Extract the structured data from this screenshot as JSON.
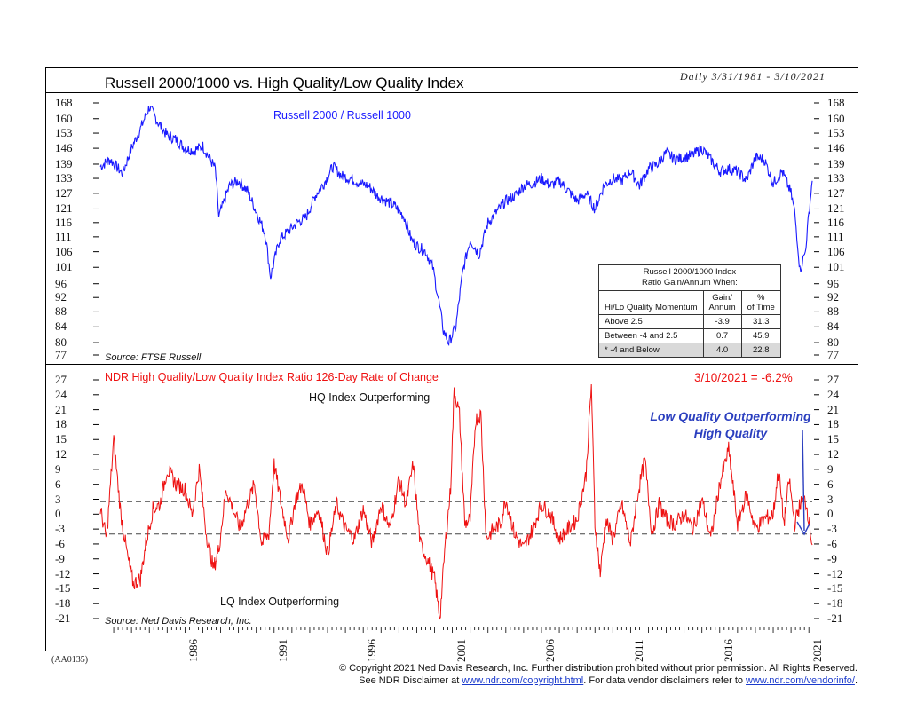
{
  "header": {
    "title": "Russell 2000/1000 vs. High Quality/Low Quality Index",
    "date_range": "Daily 3/31/1981 - 3/10/2021"
  },
  "top_panel": {
    "series_label": "Russell 2000 / Russell 1000",
    "source": "Source: FTSE Russell",
    "y_ticks": [
      "168",
      "160",
      "153",
      "146",
      "139",
      "133",
      "127",
      "121",
      "116",
      "111",
      "106",
      "101",
      "96",
      "92",
      "88",
      "84",
      "80",
      "77"
    ]
  },
  "bottom_panel": {
    "title": "NDR High Quality/Low Quality Index Ratio 126-Day Rate of Change",
    "latest": "3/10/2021 = -6.2%",
    "hq_label": "HQ Index Outperforming",
    "lq_label": "LQ Index Outperforming",
    "callout_line1": "Low Quality Outperforming",
    "callout_line2": "High Quality",
    "source": "Source: Ned Davis Research, Inc.",
    "y_ticks": [
      "27",
      "24",
      "21",
      "18",
      "15",
      "12",
      "9",
      "6",
      "3",
      "0",
      "-3",
      "-6",
      "-9",
      "-12",
      "-15",
      "-18",
      "-21"
    ]
  },
  "x_axis": {
    "years": [
      "1986",
      "1991",
      "1996",
      "2001",
      "2006",
      "2011",
      "2016",
      "2021"
    ]
  },
  "stats_table": {
    "title_line1": "Russell 2000/1000 Index",
    "title_line2": "Ratio Gain/Annum When:",
    "col1": "Hi/Lo Quality Momentum",
    "col2a": "Gain/",
    "col2b": "Annum",
    "col3a": "%",
    "col3b": "of Time",
    "rows": [
      {
        "label": "Above 2.5",
        "gain": "-3.9",
        "time": "31.3"
      },
      {
        "label": "Between -4 and 2.5",
        "gain": "0.7",
        "time": "45.9"
      },
      {
        "label": "* -4 and Below",
        "gain": "4.0",
        "time": "22.8"
      }
    ]
  },
  "code": "(AA0135)",
  "footer": {
    "line1": "© Copyright 2021 Ned Davis Research, Inc.  Further distribution prohibited without prior permission.  All Rights Reserved.",
    "line2_a": "See NDR Disclaimer at ",
    "link1": "www.ndr.com/copyright.html",
    "line2_b": ". For data vendor disclaimers refer to ",
    "link2": "www.ndr.com/vendorinfo/",
    "line2_c": "."
  },
  "colors": {
    "top_series": "#1a1aff",
    "bottom_series": "#ee1111",
    "callout": "#2b3fbf",
    "bottom_title": "#ee1111"
  },
  "chart_data": [
    {
      "type": "line",
      "title": "Russell 2000/1000 vs. High Quality/Low Quality Index",
      "series": [
        {
          "name": "Russell 2000 / Russell 1000"
        }
      ],
      "y_scale": "log",
      "ylim": [
        77,
        170
      ],
      "xlim": [
        "1981-03-31",
        "2021-03-10"
      ],
      "x": [
        1981.25,
        1981.8,
        1982.5,
        1983.0,
        1983.5,
        1984.0,
        1984.5,
        1985.0,
        1985.5,
        1986.0,
        1986.5,
        1987.0,
        1987.7,
        1987.9,
        1988.5,
        1989.0,
        1989.5,
        1990.0,
        1990.5,
        1990.8,
        1991.3,
        1991.8,
        1992.3,
        1992.8,
        1993.3,
        1993.8,
        1994.3,
        1994.8,
        1995.3,
        1995.8,
        1996.3,
        1996.8,
        1997.3,
        1997.8,
        1998.3,
        1998.7,
        1999.0,
        1999.5,
        1999.9,
        2000.2,
        2000.5,
        2000.8,
        2001.2,
        2001.6,
        2002.0,
        2002.5,
        2003.0,
        2003.5,
        2004.0,
        2004.5,
        2005.0,
        2005.5,
        2006.0,
        2006.5,
        2007.0,
        2007.5,
        2008.0,
        2008.5,
        2009.0,
        2009.5,
        2010.0,
        2010.5,
        2011.0,
        2011.5,
        2012.0,
        2012.5,
        2013.0,
        2013.5,
        2014.0,
        2014.5,
        2015.0,
        2015.5,
        2016.0,
        2016.5,
        2017.0,
        2017.5,
        2018.0,
        2018.5,
        2019.0,
        2019.5,
        2020.0,
        2020.2,
        2020.5,
        2020.8,
        2021.0,
        2021.19
      ],
      "values": [
        138,
        141,
        135,
        146,
        155,
        166,
        158,
        152,
        150,
        146,
        145,
        147,
        137,
        118,
        130,
        132,
        128,
        120,
        112,
        98,
        110,
        113,
        116,
        118,
        126,
        131,
        138,
        134,
        133,
        131,
        130,
        126,
        124,
        122,
        118,
        110,
        108,
        106,
        101,
        92,
        83,
        80,
        84,
        100,
        110,
        105,
        116,
        120,
        124,
        126,
        130,
        131,
        133,
        130,
        132,
        128,
        124,
        127,
        121,
        130,
        133,
        132,
        136,
        130,
        137,
        139,
        144,
        141,
        142,
        143,
        146,
        141,
        136,
        137,
        136,
        132,
        142,
        141,
        131,
        136,
        127,
        120,
        100,
        106,
        119,
        132
      ]
    },
    {
      "type": "line",
      "title": "NDR High Quality/Low Quality Index Ratio 126-Day Rate of Change",
      "series": [
        {
          "name": "NDR High Quality/Low Quality Index Ratio 126-Day Rate of Change"
        }
      ],
      "ylim": [
        -22,
        28
      ],
      "reference_lines": [
        2.5,
        -4
      ],
      "annotations": [
        "HQ Index Outperforming",
        "LQ Index Outperforming",
        "3/10/2021 = -6.2%"
      ],
      "x": [
        1981.25,
        1981.6,
        1982.0,
        1982.4,
        1982.8,
        1983.1,
        1983.5,
        1983.8,
        1984.2,
        1984.6,
        1985.0,
        1985.5,
        1986.0,
        1986.4,
        1986.8,
        1987.2,
        1987.6,
        1987.9,
        1988.3,
        1988.7,
        1989.1,
        1989.5,
        1989.9,
        1990.3,
        1990.7,
        1991.0,
        1991.4,
        1991.8,
        1992.2,
        1992.6,
        1993.0,
        1993.5,
        1994.0,
        1994.5,
        1995.0,
        1995.5,
        1996.0,
        1996.5,
        1997.0,
        1997.5,
        1998.0,
        1998.4,
        1998.8,
        1999.2,
        1999.6,
        2000.0,
        2000.3,
        2000.6,
        2000.9,
        2001.1,
        2001.4,
        2001.7,
        2002.0,
        2002.3,
        2002.6,
        2002.9,
        2003.3,
        2003.7,
        2004.0,
        2004.5,
        2005.0,
        2005.5,
        2006.0,
        2006.5,
        2007.0,
        2007.5,
        2008.0,
        2008.5,
        2008.8,
        2009.0,
        2009.3,
        2009.6,
        2010.0,
        2010.5,
        2011.0,
        2011.4,
        2011.8,
        2012.2,
        2012.6,
        2013.0,
        2013.5,
        2014.0,
        2014.5,
        2015.0,
        2015.5,
        2016.0,
        2016.5,
        2017.0,
        2017.5,
        2018.0,
        2018.5,
        2019.0,
        2019.3,
        2019.6,
        2019.9,
        2020.2,
        2020.5,
        2020.8,
        2021.0,
        2021.19
      ],
      "values": [
        1,
        -5,
        15,
        0,
        -9,
        -14,
        -13,
        -6,
        1,
        2,
        9,
        6,
        5,
        0,
        9,
        -4,
        -11,
        -7,
        5,
        1,
        -3,
        2,
        6,
        -6,
        -4,
        10,
        2,
        -5,
        3,
        6,
        -2,
        1,
        -8,
        2,
        -3,
        -5,
        1,
        -6,
        2,
        -3,
        7,
        2,
        10,
        -6,
        -9,
        -13,
        -21,
        -6,
        5,
        25,
        20,
        -2,
        -1,
        19,
        20,
        -5,
        -3,
        -2,
        3,
        -4,
        -7,
        -3,
        2,
        0,
        -5,
        -3,
        -1,
        8,
        26,
        -2,
        -12,
        -1,
        -5,
        2,
        -6,
        4,
        11,
        -4,
        2,
        -1,
        -2,
        0,
        -3,
        3,
        -5,
        6,
        13,
        -2,
        4,
        -3,
        -1,
        0,
        9,
        -2,
        7,
        -2,
        2,
        3,
        -1,
        -6.2
      ]
    }
  ]
}
